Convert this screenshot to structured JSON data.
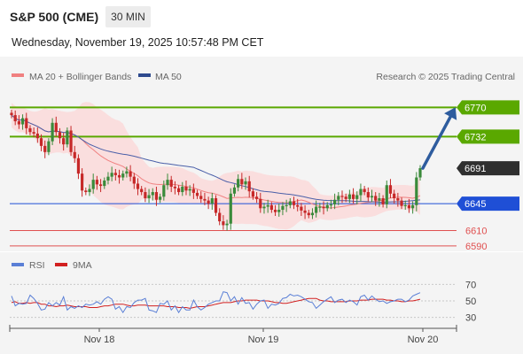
{
  "header": {
    "title": "S&P 500 (CME)",
    "timeframe": "30 MIN",
    "datetime": "Wednesday, November 19, 2025 10:57:48 PM CET"
  },
  "legend": {
    "ma20_label": "MA 20 + Bollinger Bands",
    "ma50_label": "MA 50",
    "credit": "Research © 2025 Trading Central",
    "rsi_label": "RSI",
    "rsi_ma_label": "9MA"
  },
  "colors": {
    "ma20": "#f08080",
    "band_fill": "#fbdcdc",
    "ma50": "#4a5fa8",
    "resistance": "#5aa800",
    "support": "#1f4fd6",
    "lower_support": "#e05050",
    "current": "#2f2f2f",
    "bull": "#3a8a3a",
    "bear": "#c62828",
    "arrow": "#2e5c9e",
    "rsi": "#5a7fd6",
    "rsi_ma": "#d22020"
  },
  "chart_data": [
    {
      "type": "candlestick",
      "title": "S&P 500 (CME)",
      "timeframe": "30 MIN",
      "x_ticks": [
        "Nov 18",
        "Nov 19",
        "Nov 20"
      ],
      "ylim": [
        6583,
        6790
      ],
      "levels": [
        {
          "value": 6770,
          "label": "6770",
          "kind": "resistance"
        },
        {
          "value": 6732,
          "label": "6732",
          "kind": "resistance"
        },
        {
          "value": 6691,
          "label": "6691",
          "kind": "current"
        },
        {
          "value": 6645,
          "label": "6645",
          "kind": "support"
        },
        {
          "value": 6610,
          "label": "6610",
          "kind": "lower-support"
        },
        {
          "value": 6590,
          "label": "6590",
          "kind": "lower-support"
        }
      ],
      "forecast_arrow": {
        "from": 6691,
        "to": 6770
      },
      "closes": [
        6760,
        6752,
        6748,
        6756,
        6743,
        6738,
        6736,
        6730,
        6720,
        6712,
        6726,
        6750,
        6738,
        6730,
        6722,
        6740,
        6712,
        6704,
        6684,
        6662,
        6660,
        6664,
        6676,
        6670,
        6668,
        6675,
        6680,
        6685,
        6682,
        6679,
        6684,
        6687,
        6680,
        6671,
        6664,
        6660,
        6652,
        6656,
        6660,
        6650,
        6654,
        6669,
        6676,
        6667,
        6665,
        6660,
        6667,
        6662,
        6664,
        6659,
        6655,
        6651,
        6649,
        6645,
        6652,
        6633,
        6622,
        6617,
        6619,
        6658,
        6666,
        6677,
        6670,
        6674,
        6661,
        6654,
        6651,
        6639,
        6641,
        6643,
        6637,
        6634,
        6637,
        6642,
        6643,
        6648,
        6643,
        6641,
        6636,
        6633,
        6630,
        6633,
        6641,
        6641,
        6639,
        6643,
        6644,
        6650,
        6655,
        6654,
        6651,
        6657,
        6651,
        6656,
        6664,
        6660,
        6653,
        6655,
        6649,
        6652,
        6644,
        6669,
        6658,
        6652,
        6649,
        6642,
        6643,
        6639,
        6643,
        6679,
        6691
      ]
    },
    {
      "type": "line",
      "title": "RSI",
      "y_ticks": [
        70,
        50,
        30
      ],
      "ylim": [
        20,
        80
      ],
      "series": [
        {
          "name": "RSI",
          "values": [
            56,
            44,
            47,
            46,
            47,
            57,
            53,
            47,
            39,
            40,
            48,
            44,
            48,
            45,
            55,
            39,
            43,
            41,
            44,
            42,
            46,
            45,
            46,
            49,
            46,
            52,
            55,
            52,
            40,
            43,
            36,
            43,
            42,
            48,
            51,
            51,
            53,
            39,
            38,
            36,
            47,
            46,
            50,
            39,
            44,
            36,
            43,
            39,
            39,
            51,
            43,
            39,
            42,
            46,
            48,
            50,
            50,
            61,
            60,
            50,
            55,
            46,
            54,
            47,
            48,
            40,
            46,
            50,
            51,
            41,
            46,
            45,
            47,
            53,
            54,
            58,
            56,
            57,
            55,
            52,
            49,
            48,
            41,
            45,
            49,
            52,
            55,
            48,
            51,
            52,
            48,
            51,
            49,
            45,
            55,
            57,
            51,
            56,
            52,
            49,
            50,
            47,
            49,
            50,
            52,
            52,
            49,
            51,
            56,
            58,
            60
          ]
        },
        {
          "name": "9MA",
          "values": [
            48,
            49,
            47,
            47,
            48,
            47,
            48,
            48,
            46,
            46,
            44,
            44,
            43,
            44,
            44,
            45,
            44,
            43,
            43,
            43,
            43,
            42,
            42,
            42,
            43,
            44,
            44,
            45,
            46,
            46,
            46,
            45,
            44,
            44,
            45,
            45,
            45,
            44,
            44,
            44,
            44,
            44,
            43,
            43,
            43,
            42,
            42,
            42,
            41,
            42,
            43,
            43,
            43,
            44,
            45,
            46,
            47,
            48,
            48,
            48,
            49,
            50,
            50,
            51,
            51,
            51,
            51,
            50,
            50,
            50,
            49,
            48,
            48,
            47,
            47,
            48,
            49,
            50,
            51,
            52,
            53,
            53,
            53,
            51,
            50,
            50,
            49,
            49,
            49,
            49,
            49,
            50,
            50,
            50,
            51,
            51,
            51,
            52,
            52,
            52,
            52,
            51,
            51,
            50,
            50,
            49,
            49,
            50,
            50,
            51,
            52
          ]
        }
      ]
    }
  ]
}
